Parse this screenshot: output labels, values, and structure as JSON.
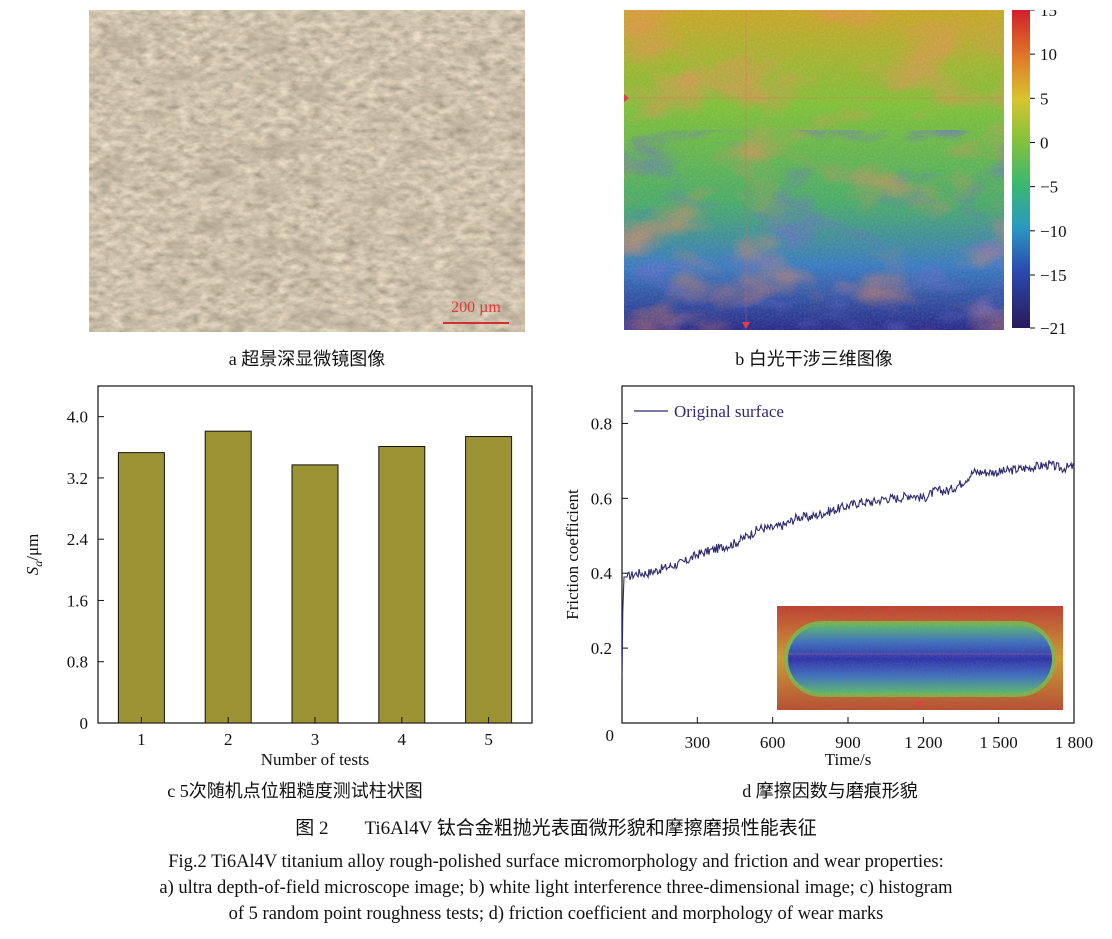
{
  "panels": {
    "a": {
      "subtitle": "a  超景深显微镜图像",
      "scale_bar_label": "200 µm"
    },
    "b": {
      "subtitle": "b  白光干涉三维图像",
      "colorbar_ticks": [
        "15",
        "10",
        "5",
        "0",
        "−5",
        "−10",
        "−15",
        "−21"
      ],
      "colorbar_values": [
        15,
        10,
        5,
        0,
        -5,
        -10,
        -15,
        -21
      ]
    },
    "c": {
      "subtitle": "c  5次随机点位粗糙度测试柱状图"
    },
    "d": {
      "subtitle": "d  摩擦因数与磨痕形貌"
    }
  },
  "caption": {
    "cn_label": "图 2",
    "cn_text": "Ti6Al4V 钛合金粗抛光表面微形貌和摩擦磨损性能表征",
    "en_line1": "Fig.2 Ti6Al4V titanium alloy rough-polished surface micromorphology and friction and wear properties:",
    "en_line2": "a) ultra depth-of-field microscope image; b) white light interference three-dimensional image; c) histogram",
    "en_line3": "of 5 random point roughness tests; d) friction coefficient and morphology of wear marks"
  },
  "colors": {
    "bar_fill": "#9c9434",
    "line": "#2e2a6e"
  },
  "chart_data": [
    {
      "type": "bar",
      "categories": [
        "1",
        "2",
        "3",
        "4",
        "5"
      ],
      "values": [
        3.53,
        3.81,
        3.37,
        3.61,
        3.74
      ],
      "xlabel": "Number of tests",
      "ylabel": "Sa/μm",
      "ylabel_main": "S",
      "ylabel_sub": "a",
      "ylabel_rest": "/μm",
      "ylim": [
        0,
        4.4
      ],
      "yticks": [
        "0",
        "0.8",
        "1.6",
        "2.4",
        "3.2",
        "4.0"
      ],
      "ytick_values": [
        0,
        0.8,
        1.6,
        2.4,
        3.2,
        4.0
      ],
      "grid": false
    },
    {
      "type": "line",
      "xlabel": "Time/s",
      "ylabel": "Friction coefficient",
      "xlim": [
        0,
        1800
      ],
      "ylim": [
        0,
        0.9
      ],
      "xticks": [
        "0",
        "300",
        "600",
        "900",
        "1 200",
        "1 500",
        "1 800"
      ],
      "xtick_values": [
        0,
        300,
        600,
        900,
        1200,
        1500,
        1800
      ],
      "yticks": [
        "0.2",
        "0.4",
        "0.6",
        "0.8"
      ],
      "ytick_values": [
        0.2,
        0.4,
        0.6,
        0.8
      ],
      "legend": "top-left",
      "grid": false,
      "series": [
        {
          "name": "Original surface",
          "x": [
            0,
            3,
            8,
            20,
            60,
            100,
            150,
            200,
            250,
            300,
            350,
            400,
            450,
            500,
            550,
            600,
            650,
            700,
            750,
            800,
            850,
            900,
            950,
            1000,
            1050,
            1100,
            1150,
            1200,
            1250,
            1300,
            1350,
            1400,
            1450,
            1500,
            1550,
            1600,
            1650,
            1700,
            1750,
            1800
          ],
          "y": [
            0.12,
            0.3,
            0.39,
            0.39,
            0.4,
            0.4,
            0.41,
            0.42,
            0.43,
            0.45,
            0.46,
            0.47,
            0.48,
            0.5,
            0.52,
            0.52,
            0.53,
            0.55,
            0.55,
            0.56,
            0.57,
            0.58,
            0.59,
            0.59,
            0.6,
            0.6,
            0.61,
            0.6,
            0.62,
            0.62,
            0.64,
            0.67,
            0.67,
            0.67,
            0.675,
            0.68,
            0.685,
            0.69,
            0.68,
            0.685
          ]
        }
      ]
    }
  ]
}
